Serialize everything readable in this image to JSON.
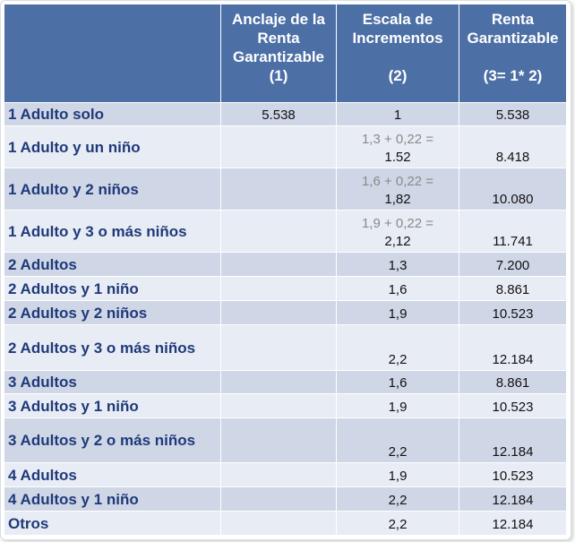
{
  "headers": {
    "col1": "",
    "col2": {
      "label": "Anclaje de la Renta Garantizable",
      "num": "(1)"
    },
    "col3": {
      "label": "Escala de Incrementos",
      "num": "(2)"
    },
    "col4": {
      "label": "Renta Garantizable",
      "num": "(3= 1* 2)"
    }
  },
  "rows": [
    {
      "category": "1 Adulto solo",
      "anchor": "5.538",
      "scale_hint": "",
      "scale": "1",
      "renta": "5.538"
    },
    {
      "category": "1 Adulto y un niño",
      "anchor": "",
      "scale_hint": "1,3 + 0,22 =",
      "scale": "1.52",
      "renta": "8.418"
    },
    {
      "category": "1 Adulto y 2 niños",
      "anchor": "",
      "scale_hint": "1,6 + 0,22 =",
      "scale": "1,82",
      "renta": "10.080"
    },
    {
      "category": "1 Adulto y 3 o más niños",
      "anchor": "",
      "scale_hint": "1,9 + 0,22 =",
      "scale": "2,12",
      "renta": "11.741"
    },
    {
      "category": "2 Adultos",
      "anchor": "",
      "scale_hint": "",
      "scale": "1,3",
      "renta": "7.200"
    },
    {
      "category": "2 Adultos y 1 niño",
      "anchor": "",
      "scale_hint": "",
      "scale": "1,6",
      "renta": "8.861"
    },
    {
      "category": "2 Adultos y 2 niños",
      "anchor": "",
      "scale_hint": "",
      "scale": "1,9",
      "renta": "10.523"
    },
    {
      "category": "2 Adultos y 3 o más niños",
      "anchor": "",
      "scale_hint": "",
      "scale": "2,2",
      "renta": "12.184"
    },
    {
      "category": "3 Adultos",
      "anchor": "",
      "scale_hint": "",
      "scale": "1,6",
      "renta": "8.861"
    },
    {
      "category": "3 Adultos y 1 niño",
      "anchor": "",
      "scale_hint": "",
      "scale": "1,9",
      "renta": "10.523"
    },
    {
      "category": "3 Adultos y 2  o más niños",
      "anchor": "",
      "scale_hint": "",
      "scale": "2,2",
      "renta": "12.184"
    },
    {
      "category": "4 Adultos",
      "anchor": "",
      "scale_hint": "",
      "scale": "1,9",
      "renta": "10.523"
    },
    {
      "category": "4 Adultos y 1 niño",
      "anchor": "",
      "scale_hint": "",
      "scale": "2,2",
      "renta": "12.184"
    },
    {
      "category": "Otros",
      "anchor": "",
      "scale_hint": "",
      "scale": "2,2",
      "renta": "12.184"
    }
  ],
  "colors": {
    "header_bg": "#4c6fa6",
    "row_dark": "#cfd6e6",
    "row_light": "#e8ecf4",
    "category_text": "#1f3a7a",
    "hint_text": "#8a8a8a"
  }
}
